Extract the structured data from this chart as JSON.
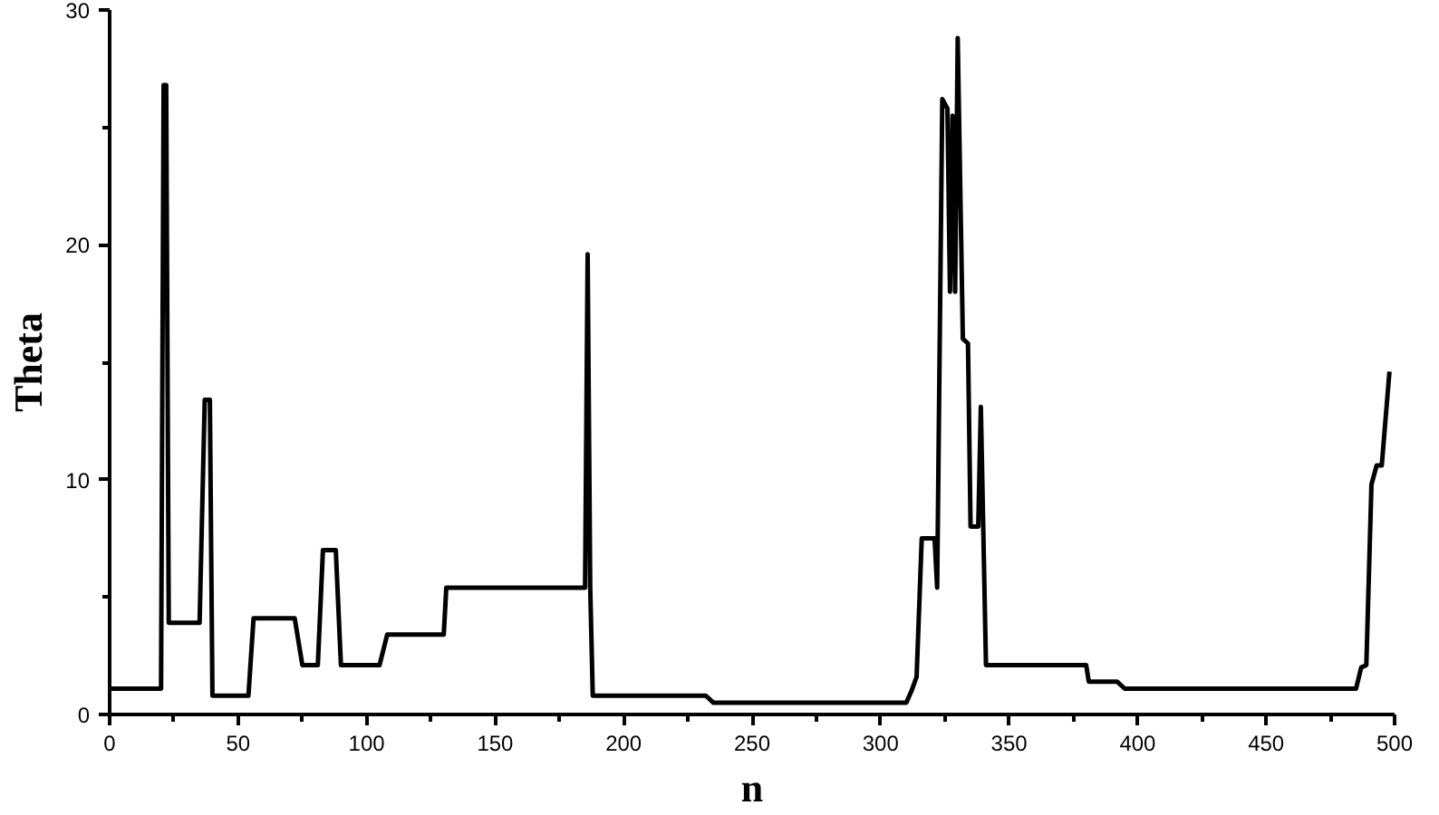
{
  "chart_data": {
    "type": "line",
    "xlabel": "n",
    "ylabel": "Theta",
    "xlim": [
      0,
      500
    ],
    "ylim": [
      0,
      30
    ],
    "xticks": [
      0,
      50,
      100,
      150,
      200,
      250,
      300,
      350,
      400,
      450,
      500
    ],
    "yticks": [
      0,
      10,
      20,
      30
    ],
    "grid": false,
    "marker": "none",
    "line_style": "solid",
    "series": [
      {
        "color": "#000000",
        "x": [
          0,
          20,
          21,
          22,
          23,
          35,
          37,
          39,
          40,
          54,
          56,
          72,
          75,
          81,
          83,
          88,
          90,
          105,
          108,
          130,
          131,
          185,
          186,
          187,
          188,
          232,
          235,
          310,
          312,
          314,
          316,
          321,
          322,
          324,
          326,
          327,
          328,
          329,
          330,
          332,
          334,
          335,
          338,
          339,
          341,
          380,
          381,
          392,
          395,
          485,
          487,
          489,
          491,
          493,
          495,
          498
        ],
        "values": [
          1.1,
          1.1,
          26.8,
          26.8,
          3.9,
          3.9,
          13.4,
          13.4,
          0.8,
          0.8,
          4.1,
          4.1,
          2.1,
          2.1,
          7.0,
          7.0,
          2.1,
          2.1,
          3.4,
          3.4,
          5.4,
          5.4,
          19.6,
          5.4,
          0.8,
          0.8,
          0.5,
          0.5,
          1.0,
          1.6,
          7.5,
          7.5,
          5.4,
          26.2,
          25.8,
          18.0,
          25.5,
          18.0,
          28.8,
          16.0,
          15.8,
          8.0,
          8.0,
          13.1,
          2.1,
          2.1,
          1.4,
          1.4,
          1.1,
          1.1,
          2.0,
          2.1,
          9.8,
          10.6,
          10.6,
          14.6
        ]
      }
    ]
  }
}
